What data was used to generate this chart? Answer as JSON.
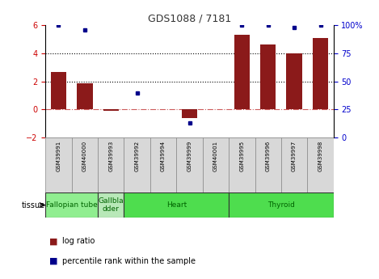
{
  "title": "GDS1088 / 7181",
  "samples": [
    "GSM39991",
    "GSM40000",
    "GSM39993",
    "GSM39992",
    "GSM39994",
    "GSM39999",
    "GSM40001",
    "GSM39995",
    "GSM39996",
    "GSM39997",
    "GSM39998"
  ],
  "log_ratio": [
    2.65,
    1.85,
    -0.08,
    0.0,
    0.0,
    -0.6,
    0.0,
    5.3,
    4.6,
    4.0,
    5.1
  ],
  "percentile_rank": [
    100,
    96,
    0,
    40,
    0,
    13,
    0,
    100,
    100,
    98,
    100
  ],
  "tissue_groups": [
    {
      "label": "Fallopian tube",
      "start": 0,
      "end": 2,
      "color": "#90EE90"
    },
    {
      "label": "Gallbla\ndder",
      "start": 2,
      "end": 3,
      "color": "#b8e8b8"
    },
    {
      "label": "Heart",
      "start": 3,
      "end": 7,
      "color": "#4edd4e"
    },
    {
      "label": "Thyroid",
      "start": 7,
      "end": 11,
      "color": "#4edd4e"
    }
  ],
  "bar_color": "#8B1A1A",
  "dot_color": "#00008B",
  "ylim_left": [
    -2,
    6
  ],
  "ylim_right": [
    0,
    100
  ],
  "yticks_left": [
    -2,
    0,
    2,
    4,
    6
  ],
  "yticks_right": [
    0,
    25,
    50,
    75,
    100
  ],
  "hlines": [
    2.0,
    4.0
  ],
  "hline_zero_color": "#CD5C5C",
  "hline_grid_color": "#000000",
  "background_color": "#ffffff",
  "tick_label_color_left": "#CC0000",
  "tick_label_color_right": "#0000CC",
  "sample_box_color": "#d8d8d8",
  "legend_bar_color": "#8B1A1A",
  "legend_dot_color": "#00008B"
}
